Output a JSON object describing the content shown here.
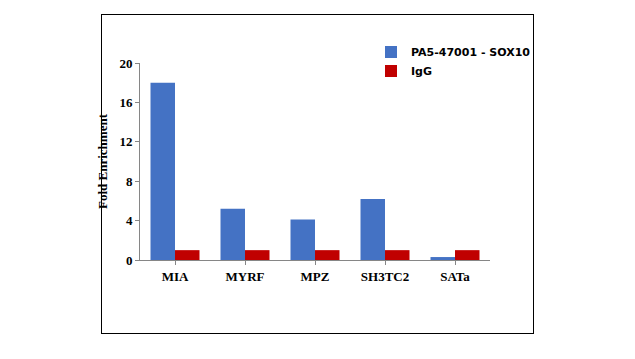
{
  "chart_data": {
    "type": "bar",
    "y_label": "Fold Enrichment",
    "categories": [
      "MIA",
      "MYRF",
      "MPZ",
      "SH3TC2",
      "SATa"
    ],
    "series": [
      {
        "name": "PA5-47001 - SOX10",
        "color": "#4472c4",
        "values": [
          18,
          5.2,
          4.1,
          6.2,
          0.3
        ]
      },
      {
        "name": "IgG",
        "color": "#c00000",
        "values": [
          1,
          1,
          1,
          1,
          1
        ]
      }
    ],
    "ylim": [
      0,
      20
    ],
    "yticks": [
      0,
      4,
      8,
      12,
      16,
      20
    ],
    "grid": false,
    "legend": "upper right"
  }
}
